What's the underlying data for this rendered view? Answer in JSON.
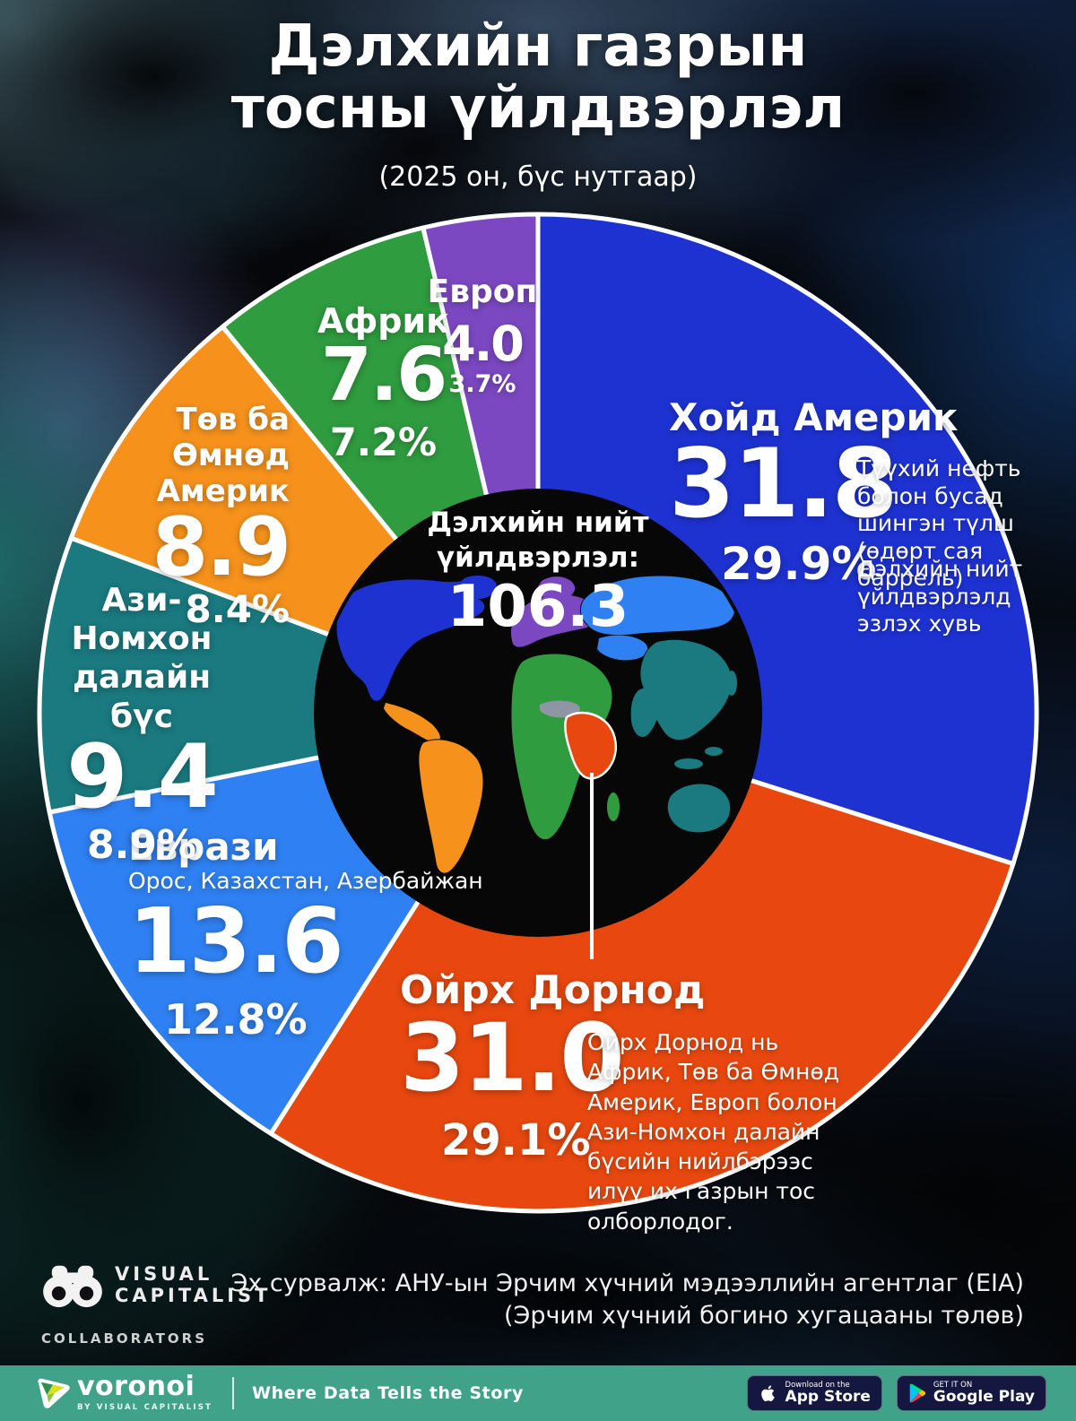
{
  "title": "Дэлхийн газрын тосны үйлдвэрлэл",
  "subtitle": "(2025 он, бүс нутгаар)",
  "center": {
    "label": "Дэлхийн нийт үйлдвэрлэл:",
    "total": "106.3"
  },
  "chart_data": {
    "type": "pie",
    "title": "Дэлхийн газрын тосны үйлдвэрлэл",
    "subtitle": "2025 он, бүс нутгаар",
    "units": "өдөрт сая баррель",
    "total": 106.3,
    "total_label": "Дэлхийн нийт үйлдвэрлэл:",
    "start_angle": "12 o'clock",
    "direction": "clockwise",
    "segments": [
      {
        "slug": "north-america",
        "name": "Хойд Америк",
        "value": 31.8,
        "value_label": "31.8",
        "percent": 29.9,
        "percent_label": "29.9%",
        "color": "#1e32d2"
      },
      {
        "slug": "middle-east",
        "name": "Ойрх Дорнод",
        "value": 31.0,
        "value_label": "31.0",
        "percent": 29.1,
        "percent_label": "29.1%",
        "color": "#e8480f"
      },
      {
        "slug": "eurasia",
        "name": "Еврази",
        "subtitle": "Орос, Казахстан, Азербайжан",
        "value": 13.6,
        "value_label": "13.6",
        "percent": 12.8,
        "percent_label": "12.8%",
        "color": "#2f80f2"
      },
      {
        "slug": "asia-pacific",
        "name": "Ази-Номхон далайн бүс",
        "value": 9.4,
        "value_label": "9.4",
        "percent": 8.9,
        "percent_label": "8.9%",
        "color": "#1a7a7f"
      },
      {
        "slug": "central-south-america",
        "name": "Төв ба Өмнөд Америк",
        "value": 8.9,
        "value_label": "8.9",
        "percent": 8.4,
        "percent_label": "8.4%",
        "color": "#f6921c"
      },
      {
        "slug": "africa",
        "name": "Африк",
        "value": 7.6,
        "value_label": "7.6",
        "percent": 7.2,
        "percent_label": "7.2%",
        "color": "#2f9c3f"
      },
      {
        "slug": "europe",
        "name": "Европ",
        "value": 4.0,
        "value_label": "4.0",
        "percent": 3.7,
        "percent_label": "3.7%",
        "color": "#7c48c2"
      }
    ]
  },
  "notes": {
    "na_units": "Түүхий нефть болон бусад шингэн түлш (өдөрт сая баррель)",
    "na_share": "Дэлхийн нийт үйлдвэрлэлд эзлэх хувь",
    "me_note": "Ойрх Дорнод нь Африк, Төв ба Өмнөд Америк, Европ болон Ази-Номхон далайн бүсийн нийлбэрээс илүү их газрын тос олборлодог."
  },
  "source": {
    "line1": "Эх сурвалж: АНУ-ын Эрчим хүчний мэдээллийн агентлаг (EIA)",
    "line2": "(Эрчим хүчний богино хугацааны төлөв)"
  },
  "branding": {
    "vc_name": "VISUAL CAPITALIST",
    "collaborators": "COLLABORATORS"
  },
  "footer": {
    "bar_color": "#41a28a",
    "logo_text": "voronoi",
    "logo_sub": "BY VISUAL CAPITALIST",
    "tagline": "Where Data Tells the Story",
    "appstore_top": "Download on the",
    "appstore_bottom": "App Store",
    "gplay_top": "GET IT ON",
    "gplay_bottom": "Google Play"
  }
}
